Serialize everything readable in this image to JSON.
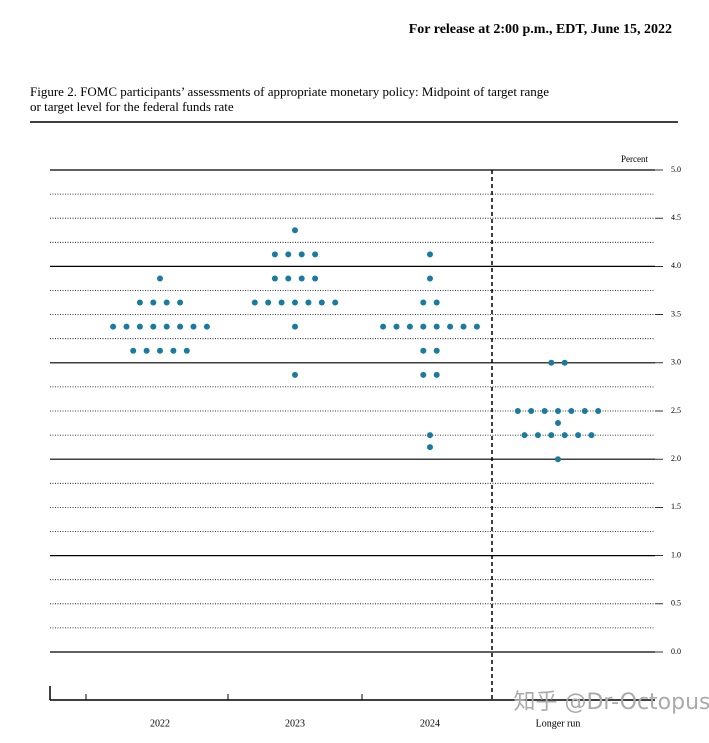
{
  "chart_data": {
    "type": "dot",
    "header": "For release at 2:00 p.m., EDT, June 15, 2022",
    "title_line1": "Figure 2.  FOMC participants’ assessments of appropriate monetary policy:  Midpoint of target range",
    "title_line2": "or target level for the federal funds rate",
    "ylabel": "Percent",
    "watermark": "知乎 @Dr-Octopus",
    "categories": [
      "2022",
      "2023",
      "2024",
      "Longer run"
    ],
    "dots": [
      [
        3.875,
        3.625,
        3.625,
        3.625,
        3.625,
        3.375,
        3.375,
        3.375,
        3.375,
        3.375,
        3.375,
        3.375,
        3.375,
        3.125,
        3.125,
        3.125,
        3.125,
        3.125
      ],
      [
        4.375,
        4.125,
        4.125,
        4.125,
        4.125,
        3.875,
        3.875,
        3.875,
        3.875,
        3.625,
        3.625,
        3.625,
        3.625,
        3.625,
        3.625,
        3.625,
        3.375,
        2.875
      ],
      [
        4.125,
        3.875,
        3.625,
        3.625,
        3.375,
        3.375,
        3.375,
        3.375,
        3.375,
        3.375,
        3.375,
        3.375,
        3.125,
        3.125,
        2.875,
        2.875,
        2.25,
        2.125
      ],
      [
        3.0,
        3.0,
        2.5,
        2.5,
        2.5,
        2.5,
        2.5,
        2.5,
        2.5,
        2.375,
        2.25,
        2.25,
        2.25,
        2.25,
        2.25,
        2.25,
        2.0
      ]
    ],
    "color": "#1b7b9e",
    "ylim": [
      0,
      5
    ],
    "yticks": [
      {
        "value": 0,
        "label": "0.0"
      },
      0.5,
      {
        "value": 1,
        "label": "1.0"
      },
      1.5,
      {
        "value": 2,
        "label": "2.0"
      },
      2.5,
      {
        "value": 3,
        "label": "3.0"
      },
      3.5,
      {
        "value": 4,
        "label": "4.0"
      },
      4.5,
      {
        "value": 5,
        "label": "5.0"
      }
    ],
    "minor_yticks": [
      0.25,
      0.75,
      1.25,
      1.75,
      2.25,
      2.75,
      3.25,
      3.75,
      4.25,
      4.75
    ]
  }
}
